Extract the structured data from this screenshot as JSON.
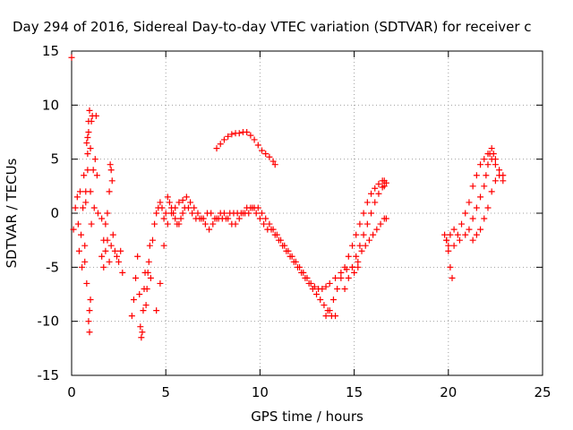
{
  "chart_data": {
    "type": "scatter",
    "title": "Day 294 of 2016, Sidereal Day-to-day VTEC variation (SDTVAR) for receiver c",
    "xlabel": "GPS time / hours",
    "ylabel": "SDTVAR / TECUs",
    "xlim": [
      0,
      25
    ],
    "ylim": [
      -15,
      15
    ],
    "xticks": [
      "0",
      "5",
      "10",
      "15",
      "20",
      "25"
    ],
    "yticks": [
      "15",
      "10",
      "5",
      "0",
      "-5",
      "-10",
      "-15"
    ],
    "grid": true,
    "marker": "+",
    "series": [
      {
        "name": "SDTVAR",
        "color": "#ff0000",
        "x": [
          0.0,
          0.1,
          0.2,
          0.3,
          0.35,
          0.4,
          0.45,
          0.5,
          0.55,
          0.6,
          0.65,
          0.7,
          0.75,
          0.8,
          0.85,
          0.9,
          0.95,
          1.0,
          1.05,
          1.1,
          1.15,
          1.2,
          1.25,
          1.3,
          1.35,
          1.4,
          0.7,
          0.75,
          0.8,
          0.85,
          0.9,
          0.95,
          1.0,
          0.85,
          0.9,
          0.95,
          1.0,
          1.05,
          1.6,
          1.7,
          1.8,
          1.9,
          2.0,
          2.05,
          2.1,
          2.15,
          1.6,
          1.7,
          1.8,
          1.9,
          2.0,
          2.1,
          2.2,
          2.3,
          2.4,
          2.5,
          2.6,
          2.7,
          3.2,
          3.3,
          3.4,
          3.5,
          3.6,
          3.65,
          3.7,
          3.75,
          3.8,
          3.85,
          3.9,
          3.95,
          4.0,
          4.05,
          4.1,
          4.15,
          4.2,
          4.3,
          4.4,
          4.5,
          4.6,
          4.7,
          4.8,
          4.9,
          5.0,
          5.1,
          5.2,
          5.3,
          5.4,
          5.5,
          5.6,
          5.7,
          5.8,
          5.9,
          6.0,
          6.2,
          6.4,
          6.6,
          6.8,
          7.0,
          7.2,
          7.4,
          7.6,
          7.8,
          8.0,
          8.2,
          8.4,
          8.6,
          8.8,
          9.0,
          9.2,
          9.4,
          9.6,
          9.8,
          10.0,
          10.2,
          10.4,
          10.6,
          10.8,
          11.0,
          11.2,
          11.4,
          11.6,
          11.8,
          12.0,
          12.2,
          12.4,
          12.6,
          12.8,
          13.0,
          13.2,
          13.4,
          13.6,
          13.8,
          14.0,
          4.5,
          4.7,
          4.9,
          5.1,
          5.3,
          5.5,
          5.7,
          5.9,
          6.1,
          6.3,
          6.5,
          6.7,
          6.9,
          7.1,
          7.3,
          7.5,
          7.7,
          7.9,
          8.1,
          8.3,
          8.5,
          8.7,
          8.9,
          9.1,
          9.3,
          9.5,
          9.7,
          9.9,
          10.1,
          10.3,
          10.5,
          10.7,
          10.9,
          11.1,
          11.3,
          11.5,
          11.7,
          11.9,
          12.1,
          12.3,
          12.5,
          12.7,
          12.9,
          13.1,
          13.3,
          13.5,
          13.7,
          7.7,
          7.9,
          8.1,
          8.3,
          8.5,
          8.7,
          8.9,
          9.1,
          9.3,
          9.5,
          9.7,
          9.9,
          10.1,
          10.3,
          10.5,
          10.7,
          10.8,
          14.0,
          14.3,
          14.6,
          14.9,
          15.2,
          13.5,
          13.7,
          13.9,
          14.1,
          14.3,
          14.5,
          14.7,
          14.9,
          15.1,
          15.3,
          15.5,
          15.7,
          15.9,
          16.1,
          16.3,
          16.5,
          16.6,
          16.7,
          14.5,
          14.7,
          14.9,
          15.1,
          15.3,
          15.5,
          15.7,
          15.9,
          16.1,
          16.3,
          16.5,
          16.6,
          15.0,
          15.2,
          15.4,
          15.6,
          15.8,
          16.0,
          16.2,
          16.4,
          16.6,
          16.7,
          19.8,
          19.9,
          20.0,
          20.1,
          20.2,
          19.9,
          20.1,
          20.3,
          20.5,
          20.7,
          20.9,
          21.1,
          21.3,
          21.5,
          21.7,
          21.9,
          22.1,
          22.3,
          22.5,
          22.7,
          22.9,
          21.3,
          21.5,
          21.7,
          21.9,
          22.1,
          22.3,
          22.5,
          22.7,
          22.9,
          20.0,
          20.3,
          20.6,
          20.9,
          21.1,
          21.3,
          21.5,
          21.7,
          21.9,
          22.0,
          22.1,
          22.2,
          22.3,
          22.4,
          22.5
        ],
        "y": [
          14.4,
          -1.5,
          0.5,
          1.5,
          -1.0,
          -3.5,
          2.0,
          -2.0,
          -5.0,
          0.5,
          3.5,
          -3.0,
          1.0,
          -6.5,
          4.0,
          7.5,
          -9.0,
          6.0,
          8.5,
          9.0,
          4.0,
          0.5,
          5.0,
          9.0,
          3.5,
          0.0,
          -4.5,
          2.0,
          6.5,
          5.5,
          -10.0,
          -11.0,
          -8.0,
          7.0,
          8.5,
          9.5,
          2.0,
          -1.0,
          -0.5,
          -2.5,
          -1.0,
          0.0,
          2.0,
          4.5,
          4.0,
          3.0,
          -4.0,
          -5.0,
          -3.5,
          -2.5,
          -4.5,
          -3.0,
          -2.0,
          -3.5,
          -4.0,
          -4.5,
          -3.5,
          -5.5,
          -9.5,
          -8.0,
          -6.0,
          -4.0,
          -7.5,
          -10.5,
          -11.5,
          -11.0,
          -9.0,
          -7.0,
          -5.5,
          -8.5,
          -7.0,
          -5.5,
          -4.5,
          -3.0,
          -6.0,
          -2.5,
          -1.0,
          0.0,
          0.5,
          1.0,
          0.5,
          -0.5,
          0.0,
          1.5,
          1.0,
          0.5,
          0.0,
          -0.5,
          -1.0,
          -1.0,
          -0.5,
          0.0,
          0.5,
          0.5,
          0.0,
          -0.5,
          -0.5,
          -0.5,
          0.0,
          0.0,
          -0.5,
          -0.5,
          -0.5,
          -0.5,
          0.0,
          0.0,
          0.0,
          0.0,
          0.0,
          0.0,
          0.5,
          0.0,
          -0.5,
          -1.0,
          -1.5,
          -1.5,
          -2.0,
          -2.5,
          -3.0,
          -3.5,
          -4.0,
          -4.5,
          -5.0,
          -5.5,
          -6.0,
          -6.5,
          -7.0,
          -7.5,
          -8.0,
          -8.5,
          -9.0,
          -9.5,
          -9.5,
          -9.0,
          -6.5,
          -3.0,
          -1.0,
          0.0,
          0.5,
          1.0,
          1.2,
          1.5,
          1.0,
          0.5,
          0.0,
          -0.5,
          -1.0,
          -1.5,
          -1.0,
          -0.5,
          0.0,
          0.0,
          -0.5,
          -1.0,
          -1.0,
          -0.5,
          0.0,
          0.5,
          0.5,
          0.5,
          0.5,
          0.0,
          -0.5,
          -1.0,
          -1.5,
          -2.0,
          -2.5,
          -3.0,
          -3.5,
          -4.0,
          -4.5,
          -5.0,
          -5.5,
          -6.0,
          -6.5,
          -6.8,
          -7.0,
          -7.0,
          -6.8,
          -6.5,
          6.0,
          6.4,
          6.8,
          7.1,
          7.3,
          7.4,
          7.4,
          7.5,
          7.5,
          7.2,
          6.8,
          6.3,
          5.8,
          5.5,
          5.2,
          4.8,
          4.5,
          -6.0,
          -5.5,
          -5.2,
          -5.0,
          -5.0,
          -9.5,
          -9.0,
          -8.0,
          -7.0,
          -6.0,
          -5.0,
          -4.0,
          -3.0,
          -2.0,
          -1.0,
          0.0,
          1.0,
          1.8,
          2.3,
          2.7,
          3.0,
          3.0,
          2.8,
          -7.0,
          -6.0,
          -5.0,
          -4.0,
          -3.0,
          -2.0,
          -1.0,
          0.0,
          1.0,
          1.8,
          2.4,
          2.5,
          -5.5,
          -4.5,
          -3.5,
          -3.0,
          -2.5,
          -2.0,
          -1.5,
          -1.0,
          -0.5,
          -0.5,
          -2.0,
          -2.5,
          -3.5,
          -5.0,
          -6.0,
          -2.5,
          -2.0,
          -1.5,
          -2.0,
          -1.0,
          0.0,
          1.0,
          2.5,
          3.5,
          4.5,
          5.0,
          5.5,
          5.0,
          4.5,
          4.0,
          3.5,
          -2.5,
          -2.0,
          -1.5,
          -0.5,
          0.5,
          2.0,
          3.0,
          3.5,
          3.0,
          -3.0,
          -3.0,
          -2.5,
          -2.0,
          -1.5,
          -0.5,
          0.5,
          1.5,
          2.5,
          3.5,
          4.5,
          5.5,
          6.0,
          5.5,
          5.0
        ]
      }
    ]
  }
}
